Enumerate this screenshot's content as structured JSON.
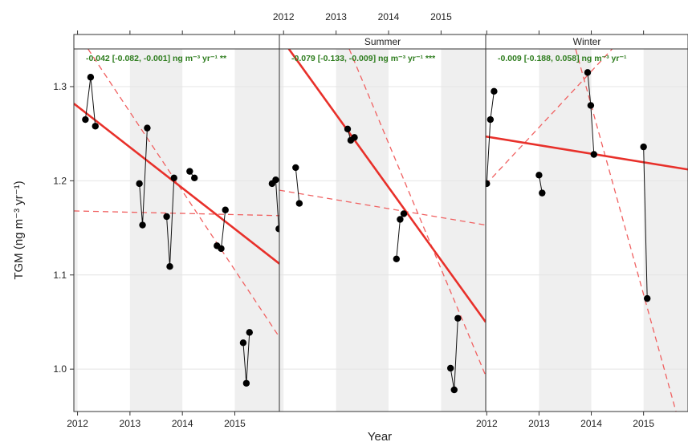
{
  "chart_data": {
    "type": "line",
    "ylabel": "TGM",
    "ylabel_unit": "(ng m⁻³ yr⁻¹)",
    "xlabel": "Year",
    "y_ticks": [
      "1.0",
      "1.1",
      "1.2",
      "1.3"
    ],
    "ylim": [
      0.955,
      1.34
    ],
    "panels": [
      {
        "strip": "",
        "trend_text": "-0.042 [-0.082, -0.001] ng m⁻³ yr⁻¹ **",
        "xlim": [
          2011.93,
          2015.85
        ],
        "x_ticks": [
          "2012",
          "2013",
          "2014",
          "2015"
        ],
        "x_tick_position": "bottom",
        "series": [
          {
            "x": [
              2012.15,
              2012.25,
              2012.34
            ],
            "y": [
              1.265,
              1.31,
              1.258
            ]
          },
          {
            "x": [
              2013.18,
              2013.24,
              2013.33
            ],
            "y": [
              1.197,
              1.153,
              1.256
            ]
          },
          {
            "x": [
              2013.7,
              2013.76,
              2013.84
            ],
            "y": [
              1.162,
              1.109,
              1.203
            ]
          },
          {
            "x": [
              2014.14,
              2014.23
            ],
            "y": [
              1.21,
              1.203
            ]
          },
          {
            "x": [
              2014.66,
              2014.74,
              2014.82
            ],
            "y": [
              1.131,
              1.128,
              1.169
            ]
          },
          {
            "x": [
              2015.16,
              2015.22,
              2015.28
            ],
            "y": [
              1.028,
              0.985,
              1.039
            ]
          },
          {
            "x": [
              2015.71,
              2015.78,
              2015.84
            ],
            "y": [
              1.197,
              1.201,
              1.149
            ]
          }
        ],
        "trend_line": {
          "x": [
            2011.93,
            2015.85
          ],
          "y": [
            1.282,
            1.112
          ]
        },
        "ci_lines": [
          {
            "x": [
              2011.93,
              2015.85
            ],
            "y": [
              1.168,
              1.163
            ]
          },
          {
            "x": [
              2012.2,
              2015.85
            ],
            "y": [
              1.34,
              1.034
            ]
          }
        ]
      },
      {
        "strip": "Summer",
        "trend_text": "-0.079 [-0.133, -0.009] ng m⁻³ yr⁻¹ ***",
        "xlim": [
          2011.92,
          2015.85
        ],
        "x_ticks": [
          "2012",
          "2013",
          "2014",
          "2015"
        ],
        "x_tick_position": "top",
        "series": [
          {
            "x": [
              2012.23,
              2012.3
            ],
            "y": [
              1.214,
              1.176
            ]
          },
          {
            "x": [
              2013.22,
              2013.28,
              2013.35
            ],
            "y": [
              1.255,
              1.243,
              1.246
            ]
          },
          {
            "x": [
              2014.15,
              2014.22,
              2014.29
            ],
            "y": [
              1.117,
              1.159,
              1.165
            ]
          },
          {
            "x": [
              2015.18,
              2015.25,
              2015.32
            ],
            "y": [
              1.001,
              0.978,
              1.054
            ]
          }
        ],
        "trend_line": {
          "x": [
            2012.1,
            2015.85
          ],
          "y": [
            1.34,
            1.05
          ]
        },
        "ci_lines": [
          {
            "x": [
              2011.92,
              2015.85
            ],
            "y": [
              1.19,
              1.153
            ]
          },
          {
            "x": [
              2013.25,
              2015.85
            ],
            "y": [
              1.34,
              0.993
            ]
          }
        ]
      },
      {
        "strip": "Winter",
        "trend_text": "-0.009 [-0.188, 0.058] ng m⁻³ yr⁻¹",
        "xlim": [
          2011.98,
          2015.85
        ],
        "x_ticks": [
          "2012",
          "2013",
          "2014",
          "2015"
        ],
        "x_tick_position": "bottom",
        "series": [
          {
            "x": [
              2012.0,
              2012.07,
              2012.14
            ],
            "y": [
              1.197,
              1.265,
              1.295
            ]
          },
          {
            "x": [
              2013.0,
              2013.06
            ],
            "y": [
              1.206,
              1.187
            ]
          },
          {
            "x": [
              2013.93,
              2013.99,
              2014.05
            ],
            "y": [
              1.315,
              1.28,
              1.228
            ]
          },
          {
            "x": [
              2015.0,
              2015.07
            ],
            "y": [
              1.236,
              1.075
            ]
          }
        ],
        "trend_line": {
          "x": [
            2011.98,
            2015.85
          ],
          "y": [
            1.247,
            1.212
          ]
        },
        "ci_lines": [
          {
            "x": [
              2011.98,
              2014.4
            ],
            "y": [
              1.196,
              1.34
            ]
          },
          {
            "x": [
              2013.7,
              2015.62
            ],
            "y": [
              1.34,
              0.955
            ]
          }
        ]
      }
    ]
  }
}
